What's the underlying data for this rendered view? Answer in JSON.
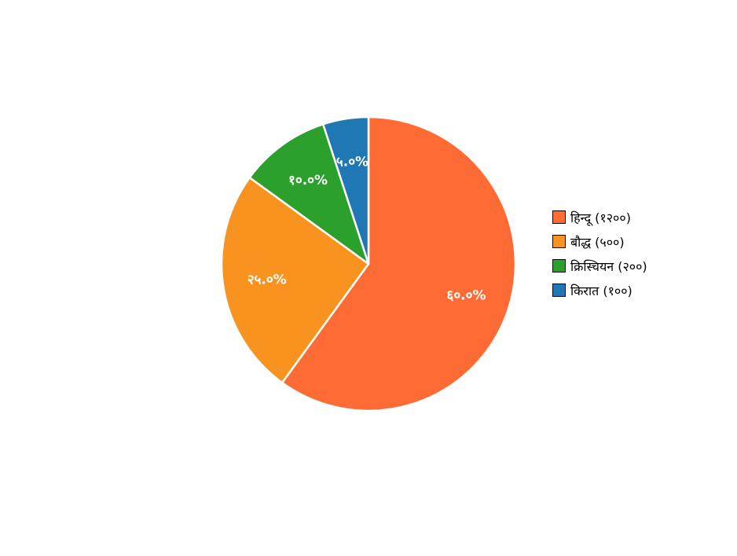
{
  "chart_data": {
    "type": "pie",
    "categories": [
      "हिन्दू",
      "बौद्ध",
      "क्रिस्चियन",
      "किरात"
    ],
    "values": [
      1200,
      500,
      200,
      100
    ],
    "slice_labels": [
      "६०.०%",
      "२५.०%",
      "१०.०%",
      "५.०%"
    ],
    "legend_entries": [
      "हिन्दू (१२००)",
      "बौद्ध (५००)",
      "क्रिस्चियन (२००)",
      "किरात (१००)"
    ],
    "colors": [
      "#ff6b35",
      "#f7931e",
      "#2ca02c",
      "#1f77b4"
    ],
    "start_angle_deg": 0,
    "direction": "clockwise",
    "legend_position": "right"
  }
}
